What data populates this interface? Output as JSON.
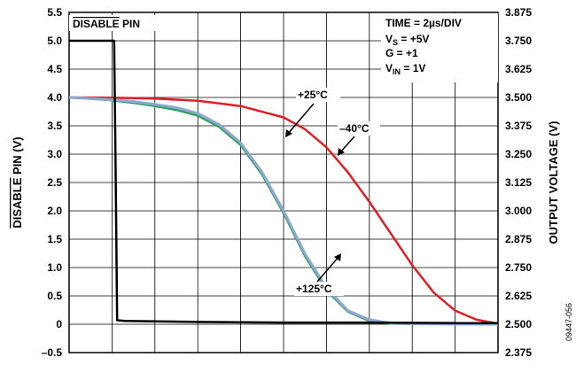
{
  "chart_data": {
    "type": "line",
    "title": "",
    "x_divisions": 10,
    "time_per_div": "2µs",
    "left_axis": {
      "label": "DISABLE PIN (V)",
      "label_overline": "DISABLE",
      "label_rest": " PIN (V)",
      "ylim": [
        -0.5,
        5.5
      ],
      "ticks": [
        "5.5",
        "5.0",
        "4.5",
        "4.0",
        "3.5",
        "3.0",
        "2.5",
        "2.0",
        "1.5",
        "1.0",
        "0.5",
        "0",
        "–0.5"
      ]
    },
    "right_axis": {
      "label": "OUTPUT VOLTAGE (V)",
      "ylim": [
        2.375,
        3.875
      ],
      "ticks": [
        "3.875",
        "3.750",
        "3.625",
        "3.500",
        "3.375",
        "3.250",
        "3.125",
        "3.000",
        "2.875",
        "2.750",
        "2.625",
        "2.500",
        "2.375"
      ]
    },
    "grid": true,
    "series": [
      {
        "name": "DISABLE PIN",
        "axis": "left",
        "color": "#000000",
        "points": [
          [
            0,
            5.0
          ],
          [
            1.05,
            5.0
          ],
          [
            1.08,
            3.0
          ],
          [
            1.12,
            0.07
          ],
          [
            1.3,
            0.06
          ],
          [
            3,
            0.04
          ],
          [
            5,
            0.03
          ],
          [
            7,
            0.03
          ],
          [
            9,
            0.02
          ],
          [
            10,
            0.02
          ]
        ]
      },
      {
        "name": "–40°C",
        "axis": "right",
        "color": "#dd2026",
        "points": [
          [
            0,
            3.5
          ],
          [
            1.0,
            3.499
          ],
          [
            2.0,
            3.495
          ],
          [
            3.0,
            3.485
          ],
          [
            4.0,
            3.462
          ],
          [
            5.0,
            3.412
          ],
          [
            5.5,
            3.36
          ],
          [
            6.0,
            3.28
          ],
          [
            6.5,
            3.17
          ],
          [
            7.0,
            3.04
          ],
          [
            7.5,
            2.9
          ],
          [
            8.0,
            2.76
          ],
          [
            8.5,
            2.64
          ],
          [
            9.0,
            2.56
          ],
          [
            9.5,
            2.52
          ],
          [
            10.0,
            2.503
          ]
        ]
      },
      {
        "name": "+25°C",
        "axis": "right",
        "color": "#8fa8d0",
        "points": [
          [
            0,
            3.5
          ],
          [
            0.5,
            3.495
          ],
          [
            1.0,
            3.49
          ],
          [
            1.5,
            3.482
          ],
          [
            2.0,
            3.47
          ],
          [
            2.5,
            3.455
          ],
          [
            3.0,
            3.43
          ],
          [
            3.5,
            3.38
          ],
          [
            4.0,
            3.3
          ],
          [
            4.5,
            3.17
          ],
          [
            5.0,
            3.0
          ],
          [
            5.5,
            2.81
          ],
          [
            6.0,
            2.66
          ],
          [
            6.5,
            2.56
          ],
          [
            7.0,
            2.52
          ],
          [
            7.5,
            2.505
          ],
          [
            8.0,
            2.502
          ],
          [
            9.0,
            2.501
          ],
          [
            10.0,
            2.5
          ]
        ]
      },
      {
        "name": "+125°C",
        "axis": "right",
        "color": "#2e9e5e",
        "points": [
          [
            0,
            3.5
          ],
          [
            0.5,
            3.494
          ],
          [
            1.0,
            3.487
          ],
          [
            1.5,
            3.476
          ],
          [
            2.0,
            3.462
          ],
          [
            2.5,
            3.445
          ],
          [
            3.0,
            3.42
          ],
          [
            3.5,
            3.37
          ],
          [
            4.0,
            3.29
          ],
          [
            4.5,
            3.16
          ],
          [
            5.0,
            2.99
          ],
          [
            5.5,
            2.8
          ],
          [
            6.0,
            2.65
          ],
          [
            6.5,
            2.555
          ],
          [
            7.0,
            2.515
          ],
          [
            7.5,
            2.503
          ],
          [
            8.0,
            2.501
          ],
          [
            9.0,
            2.5
          ],
          [
            10.0,
            2.5
          ]
        ]
      }
    ],
    "annotations": {
      "disable_pin_overline": "DISABLE",
      "disable_pin_rest": " PIN",
      "time": "TIME = 2µs/DIV",
      "vs_main": "V",
      "vs_sub": "S",
      "vs_rest": " = +5V",
      "gain": "G = +1",
      "vin_main": "V",
      "vin_sub": "IN",
      "vin_rest": " = 1V",
      "label_25": "+25°C",
      "label_m40": "–40°C",
      "label_125": "+125°C"
    },
    "figure_id": "09447-056"
  }
}
